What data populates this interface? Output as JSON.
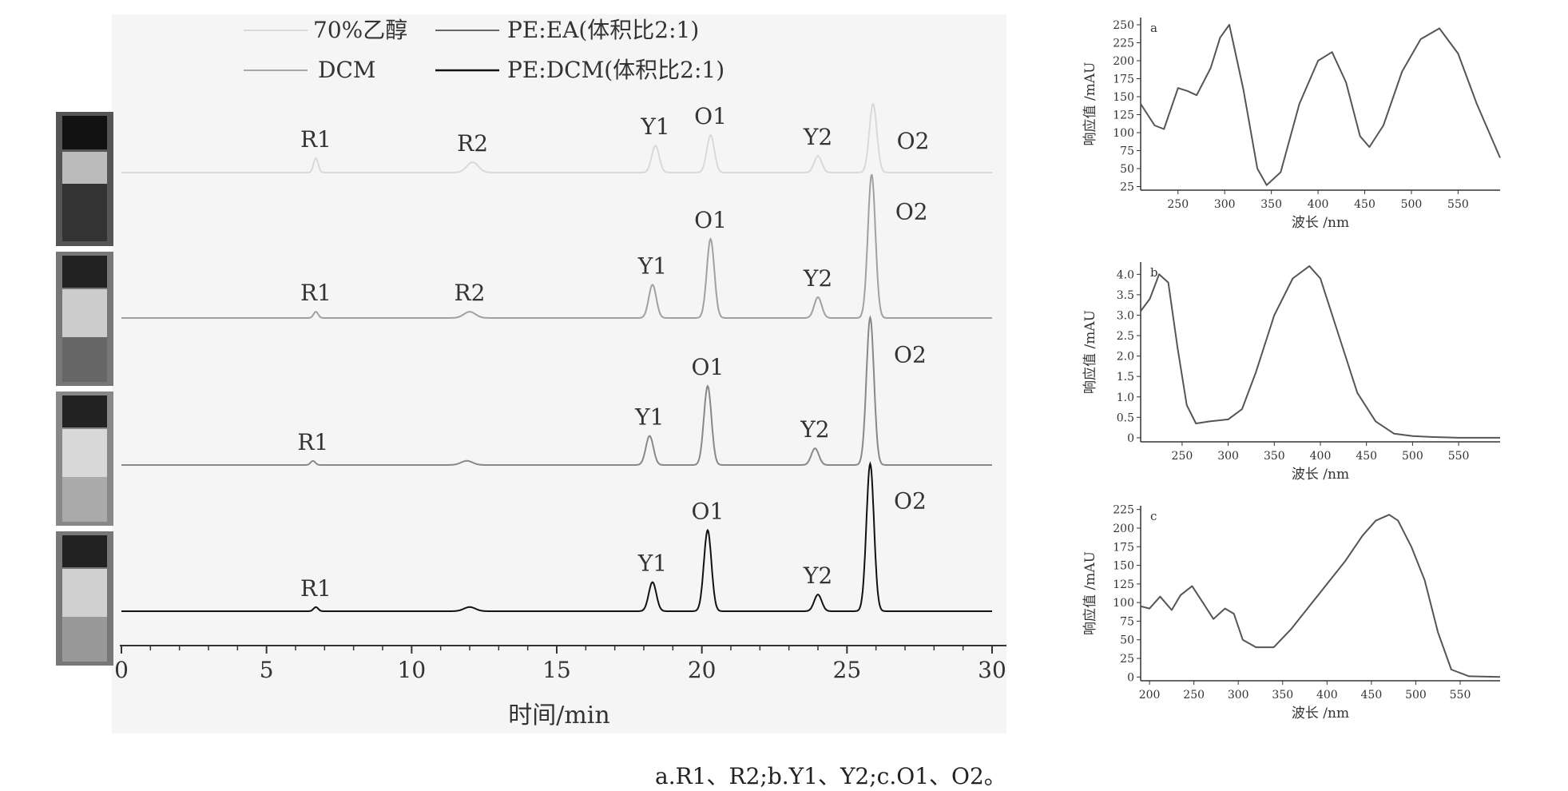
{
  "caption": "a.R1、R2;b.Y1、Y2;c.O1、O2。",
  "chart_data": [
    {
      "type": "line",
      "chart": "chromatogram",
      "xlabel": "时间/min",
      "x_ticks": [
        0,
        5,
        10,
        15,
        20,
        25,
        30
      ],
      "xlim": [
        0,
        30
      ],
      "legend": {
        "placement": "top",
        "entries": [
          {
            "name": "70%乙醇",
            "color": "#d9d9d9"
          },
          {
            "name": "PE:EA(体积比2:1)",
            "color": "#666666"
          },
          {
            "name": "DCM",
            "color": "#a8a8a8"
          },
          {
            "name": "PE:DCM(体积比2:1)",
            "color": "#111111"
          }
        ]
      },
      "series": [
        {
          "name": "70%乙醇",
          "color": "#d9d9d9",
          "peaks": [
            {
              "label": "R1",
              "x": 6.7,
              "height": 0.07
            },
            {
              "label": "R2",
              "x": 12.1,
              "height": 0.05
            },
            {
              "label": "Y1",
              "x": 18.4,
              "height": 0.13
            },
            {
              "label": "O1",
              "x": 20.3,
              "height": 0.18
            },
            {
              "label": "Y2",
              "x": 24.0,
              "height": 0.08
            },
            {
              "label": "O2",
              "x": 25.9,
              "height": 0.33
            }
          ]
        },
        {
          "name": "PE:EA(体积比2:1)",
          "color": "#a0a0a0",
          "peaks": [
            {
              "label": "R1",
              "x": 6.7,
              "height": 0.03
            },
            {
              "label": "R2",
              "x": 12.0,
              "height": 0.03
            },
            {
              "label": "Y1",
              "x": 18.3,
              "height": 0.16
            },
            {
              "label": "O1",
              "x": 20.3,
              "height": 0.38
            },
            {
              "label": "Y2",
              "x": 24.0,
              "height": 0.1
            },
            {
              "label": "O2",
              "x": 25.85,
              "height": 0.69
            }
          ]
        },
        {
          "name": "DCM",
          "color": "#888888",
          "peaks": [
            {
              "label": "R1",
              "x": 6.6,
              "height": 0.02
            },
            {
              "label": "",
              "x": 11.9,
              "height": 0.02
            },
            {
              "label": "Y1",
              "x": 18.2,
              "height": 0.14
            },
            {
              "label": "O1",
              "x": 20.2,
              "height": 0.38
            },
            {
              "label": "Y2",
              "x": 23.9,
              "height": 0.08
            },
            {
              "label": "O2",
              "x": 25.8,
              "height": 0.71
            }
          ]
        },
        {
          "name": "PE:DCM(体积比2:1)",
          "color": "#111111",
          "peaks": [
            {
              "label": "R1",
              "x": 6.7,
              "height": 0.02
            },
            {
              "label": "",
              "x": 12.0,
              "height": 0.02
            },
            {
              "label": "Y1",
              "x": 18.3,
              "height": 0.14
            },
            {
              "label": "O1",
              "x": 20.2,
              "height": 0.39
            },
            {
              "label": "Y2",
              "x": 24.0,
              "height": 0.08
            },
            {
              "label": "O2",
              "x": 25.8,
              "height": 0.71
            }
          ]
        }
      ]
    },
    {
      "type": "line",
      "panel": "a",
      "xlabel": "波长 /nm",
      "ylabel": "响应值 /mAU",
      "xlim": [
        210,
        595
      ],
      "ylim": [
        20,
        260
      ],
      "x_ticks": [
        250,
        300,
        350,
        400,
        450,
        500,
        550
      ],
      "y_ticks": [
        25,
        50,
        75,
        100,
        125,
        150,
        175,
        200,
        225,
        250
      ],
      "x": [
        210,
        225,
        235,
        250,
        260,
        270,
        285,
        295,
        305,
        320,
        335,
        345,
        360,
        380,
        400,
        415,
        430,
        445,
        455,
        470,
        490,
        510,
        530,
        550,
        570,
        595
      ],
      "y": [
        140,
        110,
        105,
        162,
        158,
        152,
        190,
        232,
        250,
        160,
        50,
        27,
        45,
        140,
        200,
        212,
        170,
        95,
        80,
        110,
        185,
        230,
        245,
        210,
        140,
        65
      ]
    },
    {
      "type": "line",
      "panel": "b",
      "xlabel": "波长 /nm",
      "ylabel": "响应值 /mAU",
      "xlim": [
        205,
        595
      ],
      "ylim": [
        -0.1,
        4.3
      ],
      "x_ticks": [
        250,
        300,
        350,
        400,
        450,
        500,
        550
      ],
      "y_ticks": [
        "0",
        "0.5",
        "1.0",
        "1.5",
        "2.0",
        "2.5",
        "3.0",
        "3.5",
        "4.0"
      ],
      "x": [
        205,
        215,
        225,
        235,
        245,
        255,
        265,
        280,
        300,
        315,
        330,
        350,
        370,
        388,
        400,
        420,
        440,
        460,
        480,
        500,
        520,
        550,
        595
      ],
      "y": [
        3.1,
        3.4,
        4.0,
        3.8,
        2.2,
        0.8,
        0.35,
        0.4,
        0.45,
        0.7,
        1.6,
        3.0,
        3.9,
        4.2,
        3.9,
        2.5,
        1.1,
        0.4,
        0.1,
        0.04,
        0.02,
        0.0,
        0.0
      ]
    },
    {
      "type": "line",
      "panel": "c",
      "xlabel": "波长 /nm",
      "ylabel": "响应值 /mAU",
      "xlim": [
        190,
        595
      ],
      "ylim": [
        -5,
        230
      ],
      "x_ticks": [
        200,
        250,
        300,
        350,
        400,
        450,
        500,
        550
      ],
      "y_ticks": [
        0,
        25,
        50,
        75,
        100,
        125,
        150,
        175,
        200,
        225
      ],
      "x": [
        190,
        200,
        212,
        225,
        235,
        248,
        260,
        272,
        285,
        295,
        305,
        320,
        340,
        360,
        380,
        400,
        420,
        440,
        455,
        470,
        480,
        495,
        510,
        525,
        540,
        560,
        595
      ],
      "y": [
        95,
        92,
        108,
        90,
        110,
        122,
        100,
        78,
        92,
        85,
        50,
        40,
        40,
        65,
        95,
        125,
        155,
        190,
        210,
        218,
        210,
        175,
        130,
        60,
        10,
        1,
        0
      ]
    }
  ]
}
